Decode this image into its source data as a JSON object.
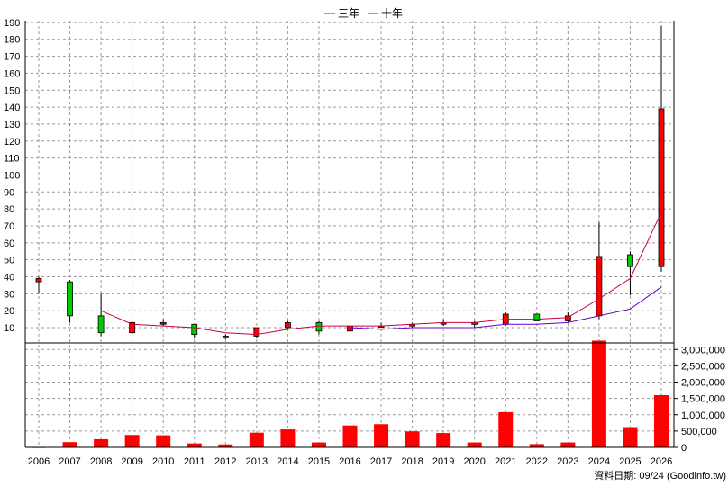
{
  "chart_data": {
    "type": "candlestick",
    "legend": [
      {
        "name": "三年",
        "color": "#cc0044"
      },
      {
        "name": "十年",
        "color": "#6600cc"
      }
    ],
    "legend_position": "top-center",
    "grid": true,
    "categories": [
      "2006",
      "2007",
      "2008",
      "2009",
      "2010",
      "2011",
      "2012",
      "2013",
      "2014",
      "2015",
      "2016",
      "2017",
      "2018",
      "2019",
      "2020",
      "2021",
      "2022",
      "2023",
      "2024",
      "2025",
      "2026"
    ],
    "price_axis": {
      "ticks": [
        "190",
        "180",
        "170",
        "160",
        "150",
        "140",
        "130",
        "120",
        "110",
        "100",
        "90",
        "80",
        "70",
        "60",
        "50",
        "40",
        "30",
        "20",
        "10"
      ],
      "ylim": [
        1,
        191
      ]
    },
    "volume_axis": {
      "ticks": [
        "3,000,000",
        "2,500,000",
        "2,000,000",
        "1,500,000",
        "1,000,000",
        "500,000",
        "0"
      ],
      "ylim": [
        0,
        3200000
      ]
    },
    "candles": [
      {
        "open": 37,
        "close": 39,
        "high": 40,
        "low": 30
      },
      {
        "open": 37,
        "close": 17,
        "high": 38,
        "low": 13
      },
      {
        "open": 17,
        "close": 7,
        "high": 30,
        "low": 5
      },
      {
        "open": 7,
        "close": 13,
        "high": 14,
        "low": 6
      },
      {
        "open": 12,
        "close": 13,
        "high": 15,
        "low": 11
      },
      {
        "open": 12,
        "close": 6,
        "high": 12,
        "low": 4
      },
      {
        "open": 4,
        "close": 5,
        "high": 6,
        "low": 3
      },
      {
        "open": 5,
        "close": 10,
        "high": 10,
        "low": 4
      },
      {
        "open": 10,
        "close": 13,
        "high": 14,
        "low": 9
      },
      {
        "open": 13,
        "close": 8,
        "high": 14,
        "low": 6
      },
      {
        "open": 8,
        "close": 11,
        "high": 14,
        "low": 7
      },
      {
        "open": 11,
        "close": 11,
        "high": 13,
        "low": 10
      },
      {
        "open": 11,
        "close": 12,
        "high": 13,
        "low": 10
      },
      {
        "open": 12,
        "close": 13,
        "high": 15,
        "low": 11
      },
      {
        "open": 12,
        "close": 13,
        "high": 14,
        "low": 10
      },
      {
        "open": 12,
        "close": 18,
        "high": 19,
        "low": 11
      },
      {
        "open": 18,
        "close": 14,
        "high": 18,
        "low": 14
      },
      {
        "open": 14,
        "close": 17,
        "high": 19,
        "low": 13
      },
      {
        "open": 17,
        "close": 52,
        "high": 72,
        "low": 15
      },
      {
        "open": 53,
        "close": 46,
        "high": 55,
        "low": 29
      },
      {
        "open": 46,
        "close": 139,
        "high": 188,
        "low": 43
      }
    ],
    "series": [
      {
        "name": "三年",
        "values": [
          null,
          null,
          20,
          12,
          11,
          10,
          7,
          6,
          9,
          11,
          11,
          11,
          12,
          13,
          13,
          15,
          15,
          16,
          27,
          39,
          78
        ]
      },
      {
        "name": "十年",
        "values": [
          null,
          null,
          null,
          null,
          null,
          null,
          null,
          null,
          null,
          null,
          10,
          9,
          10,
          10,
          10,
          12,
          12,
          13,
          17,
          21,
          34
        ]
      }
    ],
    "volume": [
      10000,
      160000,
      250000,
      380000,
      370000,
      120000,
      90000,
      450000,
      550000,
      150000,
      670000,
      710000,
      490000,
      440000,
      150000,
      1080000,
      100000,
      150000,
      3270000,
      620000,
      1600000
    ],
    "footer": "資料日期: 09/24  (Goodinfo.tw)"
  }
}
